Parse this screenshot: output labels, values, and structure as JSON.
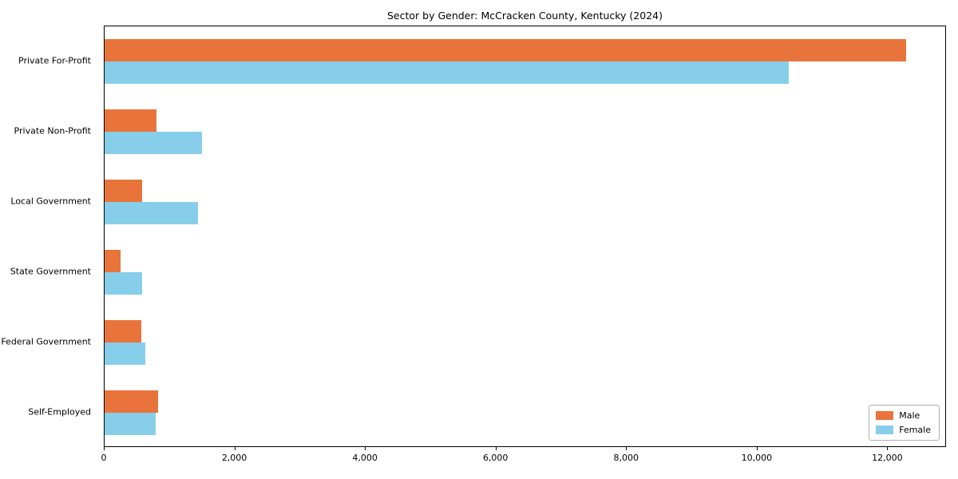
{
  "title": "Sector by Gender: McCracken County, Kentucky (2024)",
  "chart_data": {
    "type": "bar",
    "orientation": "horizontal",
    "title": "Sector by Gender: McCracken County, Kentucky (2024)",
    "categories": [
      "Private For-Profit",
      "Private Non-Profit",
      "Local Government",
      "State Government",
      "Federal Government",
      "Self-Employed"
    ],
    "series": [
      {
        "name": "Male",
        "color": "#e8743b",
        "values": [
          12300,
          800,
          575,
          250,
          560,
          820
        ]
      },
      {
        "name": "Female",
        "color": "#87ceeb",
        "values": [
          10500,
          1500,
          1430,
          575,
          620,
          780
        ]
      }
    ],
    "xlim": [
      0,
      12900
    ],
    "xticks": [
      0,
      2000,
      4000,
      6000,
      8000,
      10000,
      12000
    ],
    "xtick_labels": [
      "0",
      "2,000",
      "4,000",
      "6,000",
      "8,000",
      "10,000",
      "12,000"
    ],
    "grid": false,
    "legend": {
      "position": "lower right"
    }
  }
}
